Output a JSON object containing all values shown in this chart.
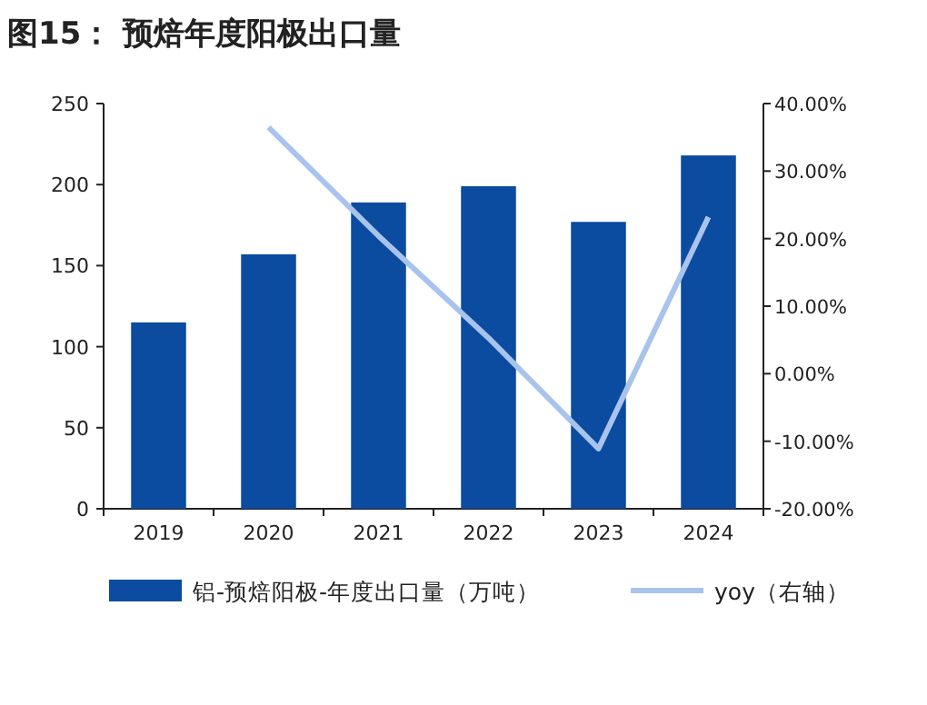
{
  "chart_data": {
    "type": "bar",
    "title": "图15：  预焙年度阳极出口量",
    "categories": [
      "2019",
      "2020",
      "2021",
      "2022",
      "2023",
      "2024"
    ],
    "series": [
      {
        "name": "铝-预焙阳极-年度出口量（万吨）",
        "color": "#0b4ba0",
        "values": [
          115,
          157,
          189,
          199,
          177,
          218
        ]
      },
      {
        "name": "yoy（右轴）",
        "type": "line",
        "axis": "y2",
        "color": "#a9c4ec",
        "values": [
          null,
          36.5,
          20.4,
          5.3,
          -11.1,
          23.2
        ]
      }
    ],
    "ylim": [
      0,
      250
    ],
    "yticks": [
      0,
      50,
      100,
      150,
      200,
      250
    ],
    "y2lim": [
      -20,
      40
    ],
    "y2ticks": [
      {
        "value": -20,
        "label": "-20.00%"
      },
      {
        "value": -10,
        "label": "-10.00%"
      },
      {
        "value": 0,
        "label": "0.00%"
      },
      {
        "value": 10,
        "label": "10.00%"
      },
      {
        "value": 20,
        "label": "20.00%"
      },
      {
        "value": 30,
        "label": "30.00%"
      },
      {
        "value": 40,
        "label": "40.00%"
      }
    ],
    "legend": "bottom"
  }
}
